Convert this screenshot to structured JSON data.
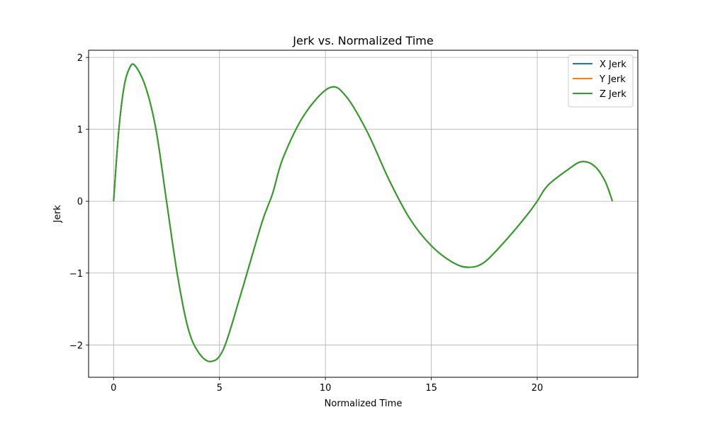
{
  "chart_data": {
    "type": "line",
    "title": "Jerk vs. Normalized Time",
    "xlabel": "Normalized Time",
    "ylabel": "Jerk",
    "xlim": [
      -1.18,
      24.75
    ],
    "ylim": [
      -2.45,
      2.1
    ],
    "xticks": [
      0,
      5,
      10,
      15,
      20
    ],
    "xtick_labels": [
      "0",
      "5",
      "10",
      "15",
      "20"
    ],
    "yticks": [
      -2,
      -1,
      0,
      1,
      2
    ],
    "ytick_labels": [
      "−2",
      "−1",
      "0",
      "1",
      "2"
    ],
    "grid": true,
    "legend_position": "top-right",
    "x": [
      0,
      0.25,
      0.5,
      0.75,
      1.0,
      1.5,
      2.0,
      2.5,
      3.0,
      3.5,
      4.0,
      4.6,
      5.2,
      6.0,
      7.0,
      7.5,
      8.0,
      9.0,
      10.2,
      11.0,
      12.0,
      13.0,
      14.0,
      15.0,
      16.0,
      16.75,
      17.5,
      18.5,
      19.5,
      20.0,
      20.5,
      21.5,
      22.1,
      22.7,
      23.2,
      23.55
    ],
    "series": [
      {
        "name": "X Jerk",
        "color": "#1f77b4",
        "y": [
          0,
          1.0,
          1.6,
          1.85,
          1.89,
          1.6,
          1.0,
          0.0,
          -1.0,
          -1.75,
          -2.1,
          -2.23,
          -2.05,
          -1.3,
          -0.3,
          0.1,
          0.6,
          1.2,
          1.58,
          1.45,
          0.95,
          0.3,
          -0.25,
          -0.62,
          -0.85,
          -0.92,
          -0.85,
          -0.55,
          -0.2,
          0.0,
          0.22,
          0.45,
          0.55,
          0.49,
          0.28,
          0.0
        ]
      },
      {
        "name": "Y Jerk",
        "color": "#ff7f0e",
        "y": [
          0,
          1.0,
          1.6,
          1.85,
          1.89,
          1.6,
          1.0,
          0.0,
          -1.0,
          -1.75,
          -2.1,
          -2.23,
          -2.05,
          -1.3,
          -0.3,
          0.1,
          0.6,
          1.2,
          1.58,
          1.45,
          0.95,
          0.3,
          -0.25,
          -0.62,
          -0.85,
          -0.92,
          -0.85,
          -0.55,
          -0.2,
          0.0,
          0.22,
          0.45,
          0.55,
          0.49,
          0.28,
          0.0
        ]
      },
      {
        "name": "Z Jerk",
        "color": "#2ca02c",
        "y": [
          0,
          1.0,
          1.6,
          1.85,
          1.89,
          1.6,
          1.0,
          0.0,
          -1.0,
          -1.75,
          -2.1,
          -2.23,
          -2.05,
          -1.3,
          -0.3,
          0.1,
          0.6,
          1.2,
          1.58,
          1.45,
          0.95,
          0.3,
          -0.25,
          -0.62,
          -0.85,
          -0.92,
          -0.85,
          -0.55,
          -0.2,
          0.0,
          0.22,
          0.45,
          0.55,
          0.49,
          0.28,
          0.0
        ]
      }
    ]
  }
}
